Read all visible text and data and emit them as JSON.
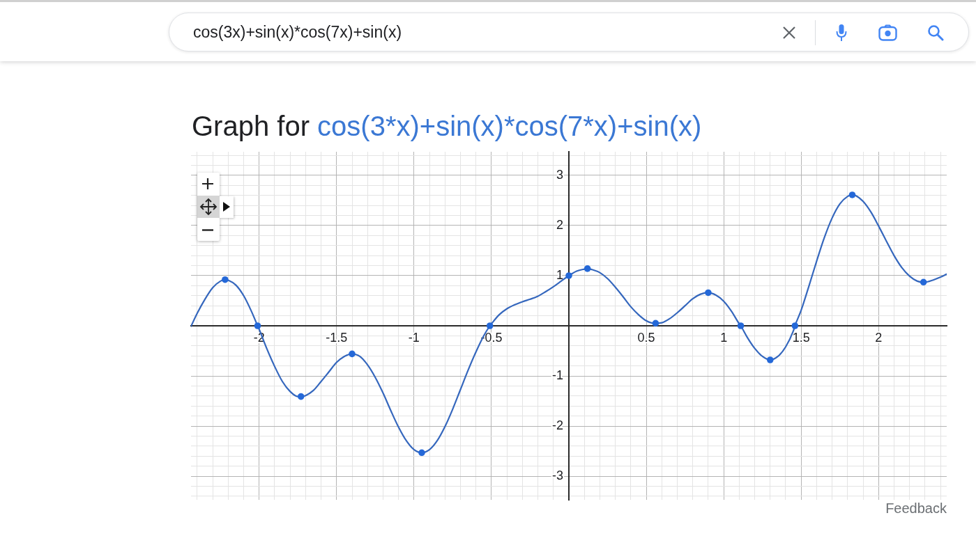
{
  "chart_data": {
    "type": "line",
    "title": "Graph for",
    "subtitle": "cos(3*x)+sin(x)*cos(7*x)+sin(x)",
    "annotations": [
      "cos(3x)+sin(x)*cos(7x)+sin(x)",
      "Feedback"
    ],
    "xlim": [
      -2.44,
      2.44
    ],
    "ylim": [
      -3.47,
      3.47
    ],
    "xticks": [
      {
        "value": -2.4,
        "label": null
      },
      {
        "value": -2.3,
        "label": null
      },
      {
        "value": -2.2,
        "label": null
      },
      {
        "value": -2.1,
        "label": null
      },
      -2,
      {
        "value": -1.9,
        "label": null
      },
      {
        "value": -1.8,
        "label": null
      },
      {
        "value": -1.7,
        "label": null
      },
      {
        "value": -1.6,
        "label": null
      },
      -1.5,
      {
        "value": -1.4,
        "label": null
      },
      {
        "value": -1.3,
        "label": null
      },
      {
        "value": -1.2,
        "label": null
      },
      {
        "value": -1.1,
        "label": null
      },
      -1,
      {
        "value": -0.9,
        "label": null
      },
      {
        "value": -0.8,
        "label": null
      },
      {
        "value": -0.7,
        "label": null
      },
      {
        "value": -0.6,
        "label": null
      },
      -0.5,
      {
        "value": -0.4,
        "label": null
      },
      {
        "value": -0.3,
        "label": null
      },
      {
        "value": -0.2,
        "label": null
      },
      {
        "value": -0.1,
        "label": null
      },
      {
        "value": 0,
        "label": null
      },
      {
        "value": 0.1,
        "label": null
      },
      {
        "value": 0.2,
        "label": null
      },
      {
        "value": 0.3,
        "label": null
      },
      {
        "value": 0.4,
        "label": null
      },
      0.5,
      {
        "value": 0.6,
        "label": null
      },
      {
        "value": 0.7,
        "label": null
      },
      {
        "value": 0.8,
        "label": null
      },
      {
        "value": 0.9,
        "label": null
      },
      1,
      {
        "value": 1.1,
        "label": null
      },
      {
        "value": 1.2,
        "label": null
      },
      {
        "value": 1.3,
        "label": null
      },
      {
        "value": 1.4,
        "label": null
      },
      1.5,
      {
        "value": 1.6,
        "label": null
      },
      {
        "value": 1.7,
        "label": null
      },
      {
        "value": 1.8,
        "label": null
      },
      {
        "value": 1.9,
        "label": null
      },
      2,
      {
        "value": 2.1,
        "label": null
      },
      {
        "value": 2.2,
        "label": null
      },
      {
        "value": 2.3,
        "label": null
      },
      {
        "value": 2.4,
        "label": null
      }
    ],
    "yticks": [
      {
        "value": -3.4,
        "label": null
      },
      {
        "value": -3.2,
        "label": null
      },
      -3,
      {
        "value": -2.8,
        "label": null
      },
      {
        "value": -2.6,
        "label": null
      },
      {
        "value": -2.4,
        "label": null
      },
      {
        "value": -2.2,
        "label": null
      },
      -2,
      {
        "value": -1.8,
        "label": null
      },
      {
        "value": -1.6,
        "label": null
      },
      {
        "value": -1.4,
        "label": null
      },
      {
        "value": -1.2,
        "label": null
      },
      -1,
      {
        "value": -0.8,
        "label": null
      },
      {
        "value": -0.6,
        "label": null
      },
      {
        "value": -0.4,
        "label": null
      },
      {
        "value": -0.2,
        "label": null
      },
      {
        "value": 0,
        "label": null
      },
      {
        "value": 0.2,
        "label": null
      },
      {
        "value": 0.4,
        "label": null
      },
      {
        "value": 0.6,
        "label": null
      },
      {
        "value": 0.8,
        "label": null
      },
      1,
      {
        "value": 1.2,
        "label": null
      },
      {
        "value": 1.4,
        "label": null
      },
      {
        "value": 1.6,
        "label": null
      },
      {
        "value": 1.8,
        "label": null
      },
      2,
      {
        "value": 2.2,
        "label": null
      },
      {
        "value": 2.4,
        "label": null
      },
      {
        "value": 2.6,
        "label": null
      },
      {
        "value": 2.8,
        "label": null
      },
      3,
      {
        "value": 3.2,
        "label": null
      },
      {
        "value": 3.4,
        "label": null
      }
    ],
    "grid": true,
    "series": [
      {
        "type": "line",
        "color": "#3567bd",
        "marker": "none",
        "x": [
          -2.44,
          -2.4,
          -2.35,
          -2.3,
          -2.25,
          -2.22,
          -2.2,
          -2.15,
          -2.1,
          -2.05,
          -2.01,
          -2,
          -1.95,
          -1.9,
          -1.85,
          -1.8,
          -1.75,
          -1.73,
          -1.7,
          -1.65,
          -1.6,
          -1.55,
          -1.5,
          -1.45,
          -1.4,
          -1.35,
          -1.3,
          -1.25,
          -1.2,
          -1.15,
          -1.1,
          -1.05,
          -1,
          -0.95,
          -0.9,
          -0.85,
          -0.8,
          -0.75,
          -0.7,
          -0.65,
          -0.6,
          -0.55,
          -0.51,
          -0.5,
          -0.45,
          -0.4,
          -0.35,
          -0.3,
          -0.25,
          -0.2,
          -0.15,
          -0.1,
          -0.05,
          0,
          0.05,
          0.1,
          0.12,
          0.15,
          0.2,
          0.25,
          0.3,
          0.35,
          0.4,
          0.45,
          0.5,
          0.55,
          0.56,
          0.6,
          0.65,
          0.7,
          0.75,
          0.8,
          0.85,
          0.9,
          0.95,
          1,
          1.05,
          1.1,
          1.11,
          1.15,
          1.2,
          1.25,
          1.3,
          1.35,
          1.4,
          1.45,
          1.46,
          1.5,
          1.55,
          1.6,
          1.65,
          1.7,
          1.75,
          1.8,
          1.83,
          1.85,
          1.9,
          1.95,
          2,
          2.05,
          2.1,
          2.15,
          2.2,
          2.25,
          2.29,
          2.3,
          2.35,
          2.4,
          2.44
        ],
        "values": [
          -0.01,
          0.25,
          0.53,
          0.76,
          0.89,
          0.92,
          0.91,
          0.81,
          0.6,
          0.29,
          0,
          -0.07,
          -0.46,
          -0.81,
          -1.11,
          -1.31,
          -1.41,
          -1.41,
          -1.39,
          -1.29,
          -1.11,
          -0.92,
          -0.73,
          -0.61,
          -0.56,
          -0.61,
          -0.78,
          -1.03,
          -1.34,
          -1.69,
          -2.02,
          -2.29,
          -2.47,
          -2.53,
          -2.47,
          -2.29,
          -2.01,
          -1.66,
          -1.27,
          -0.88,
          -0.52,
          -0.2,
          0,
          0.04,
          0.22,
          0.34,
          0.42,
          0.48,
          0.53,
          0.59,
          0.68,
          0.78,
          0.89,
          1,
          1.09,
          1.13,
          1.14,
          1.12,
          1.06,
          0.94,
          0.77,
          0.58,
          0.38,
          0.22,
          0.1,
          0.05,
          0.05,
          0.06,
          0.14,
          0.26,
          0.4,
          0.54,
          0.63,
          0.66,
          0.61,
          0.49,
          0.29,
          0.04,
          0,
          -0.22,
          -0.45,
          -0.61,
          -0.68,
          -0.61,
          -0.42,
          -0.1,
          0,
          0.31,
          0.79,
          1.29,
          1.76,
          2.15,
          2.43,
          2.58,
          2.61,
          2.6,
          2.48,
          2.27,
          1.99,
          1.69,
          1.4,
          1.16,
          0.99,
          0.89,
          0.87,
          0.87,
          0.91,
          0.97,
          1.03
        ]
      },
      {
        "type": "scatter",
        "color": "#2468d8",
        "marker": "circle",
        "x": [
          -2.22,
          -2.01,
          -1.73,
          -1.4,
          -0.95,
          -0.51,
          0,
          0.12,
          0.56,
          0.9,
          1.11,
          1.3,
          1.46,
          1.83,
          2.29
        ],
        "values": [
          0.92,
          0,
          -1.41,
          -0.56,
          -2.53,
          0,
          1,
          1.14,
          0.05,
          0.66,
          0,
          -0.68,
          0,
          2.61,
          0.87
        ]
      }
    ]
  }
}
